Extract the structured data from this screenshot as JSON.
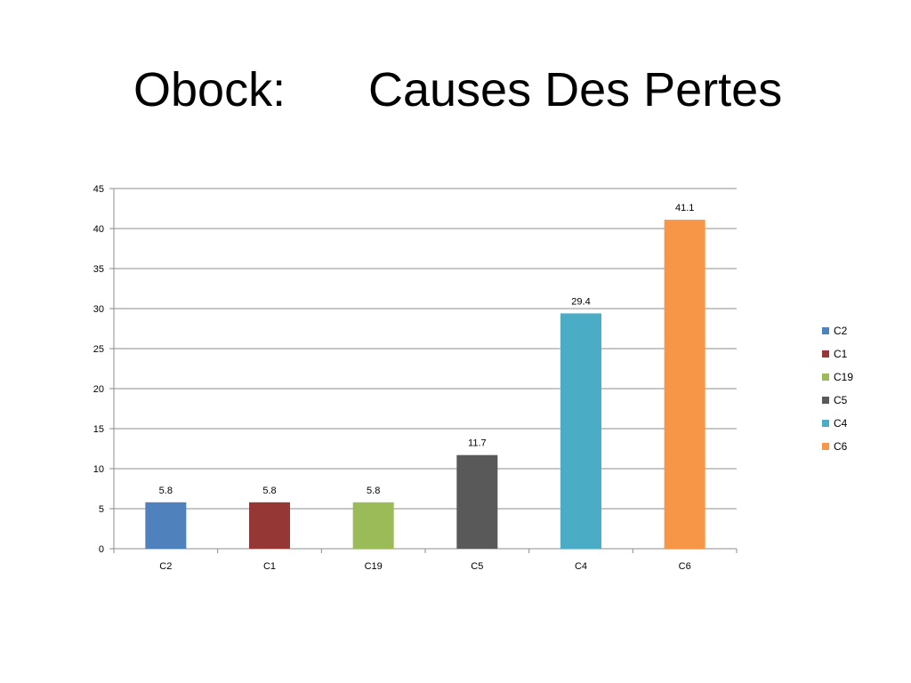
{
  "slide": {
    "title_place": "Obock:",
    "title_topic": "Causes Des Pertes"
  },
  "chart_data": {
    "type": "bar",
    "title": "",
    "xlabel": "",
    "ylabel": "",
    "ylim": [
      0,
      45
    ],
    "ytick_step": 5,
    "grid": true,
    "legend_position": "right",
    "categories": [
      "C2",
      "C1",
      "C19",
      "C5",
      "C4",
      "C6"
    ],
    "values": [
      5.8,
      5.8,
      5.8,
      11.7,
      29.4,
      41.1
    ],
    "data_labels": [
      "5.8",
      "5.8",
      "5.8",
      "11.7",
      "29.4",
      "41.1"
    ],
    "colors": [
      "#4F81BD",
      "#953735",
      "#9BBB59",
      "#595959",
      "#4BACC6",
      "#F79646"
    ]
  }
}
